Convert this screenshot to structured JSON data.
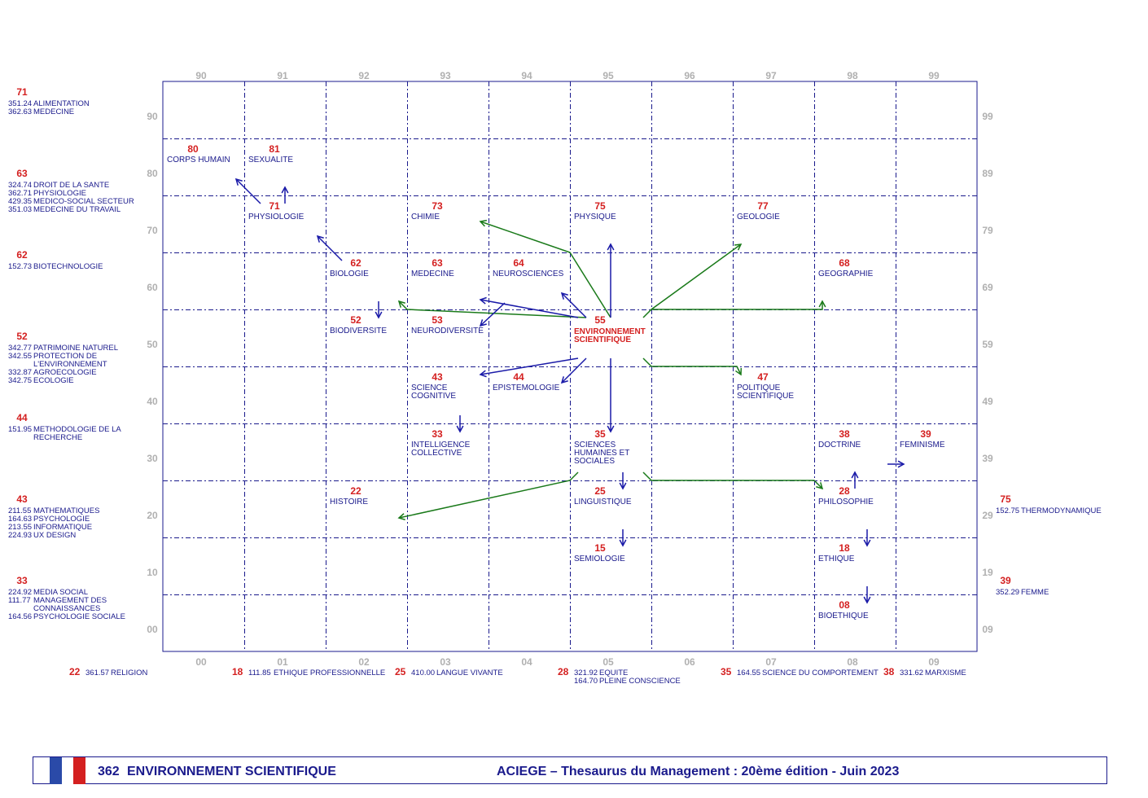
{
  "colors": {
    "grid": "#1a1a8c",
    "axis_label": "#b0b0b0",
    "code": "#d42020",
    "term": "#1a1a8c",
    "focus": "#d42020",
    "arrow_blue": "#1a1aa8",
    "arrow_green": "#1a7a1a"
  },
  "axes": {
    "top": [
      "90",
      "91",
      "92",
      "93",
      "94",
      "95",
      "96",
      "97",
      "98",
      "99"
    ],
    "bottom": [
      "00",
      "01",
      "02",
      "03",
      "04",
      "05",
      "06",
      "07",
      "08",
      "09"
    ],
    "left": [
      "90",
      "80",
      "70",
      "60",
      "50",
      "40",
      "30",
      "20",
      "10",
      "00"
    ],
    "right": [
      "99",
      "89",
      "79",
      "69",
      "59",
      "49",
      "39",
      "29",
      "19",
      "09"
    ]
  },
  "focus": {
    "code": "55",
    "line1": "ENVIRONNEMENT",
    "line2": "SCIENTIFIQUE"
  },
  "cells": [
    {
      "id": "80",
      "col": 0,
      "row": 1,
      "code": "80",
      "lines": [
        "CORPS HUMAIN"
      ]
    },
    {
      "id": "81",
      "col": 1,
      "row": 1,
      "code": "81",
      "lines": [
        "SEXUALITE"
      ]
    },
    {
      "id": "71",
      "col": 1,
      "row": 2,
      "code": "71",
      "lines": [
        "PHYSIOLOGIE"
      ]
    },
    {
      "id": "73",
      "col": 3,
      "row": 2,
      "code": "73",
      "lines": [
        "CHIMIE"
      ]
    },
    {
      "id": "75",
      "col": 5,
      "row": 2,
      "code": "75",
      "lines": [
        "PHYSIQUE"
      ]
    },
    {
      "id": "77",
      "col": 7,
      "row": 2,
      "code": "77",
      "lines": [
        "GEOLOGIE"
      ]
    },
    {
      "id": "62",
      "col": 2,
      "row": 3,
      "code": "62",
      "lines": [
        "BIOLOGIE"
      ]
    },
    {
      "id": "63",
      "col": 3,
      "row": 3,
      "code": "63",
      "lines": [
        "MEDECINE"
      ]
    },
    {
      "id": "64",
      "col": 4,
      "row": 3,
      "code": "64",
      "lines": [
        "NEUROSCIENCES"
      ]
    },
    {
      "id": "68",
      "col": 8,
      "row": 3,
      "code": "68",
      "lines": [
        "GEOGRAPHIE"
      ]
    },
    {
      "id": "52",
      "col": 2,
      "row": 4,
      "code": "52",
      "lines": [
        "BIODIVERSITE"
      ]
    },
    {
      "id": "53",
      "col": 3,
      "row": 4,
      "code": "53",
      "lines": [
        "NEURODIVERSITE"
      ]
    },
    {
      "id": "43",
      "col": 3,
      "row": 5,
      "code": "43",
      "lines": [
        "SCIENCE",
        "COGNITIVE"
      ]
    },
    {
      "id": "44",
      "col": 4,
      "row": 5,
      "code": "44",
      "lines": [
        "EPISTEMOLOGIE"
      ]
    },
    {
      "id": "47",
      "col": 7,
      "row": 5,
      "code": "47",
      "lines": [
        "POLITIQUE",
        "SCIENTIFIQUE"
      ]
    },
    {
      "id": "33",
      "col": 3,
      "row": 6,
      "code": "33",
      "lines": [
        "INTELLIGENCE",
        "COLLECTIVE"
      ]
    },
    {
      "id": "35",
      "col": 5,
      "row": 6,
      "code": "35",
      "lines": [
        "SCIENCES",
        "HUMAINES ET",
        "SOCIALES"
      ]
    },
    {
      "id": "38",
      "col": 8,
      "row": 6,
      "code": "38",
      "lines": [
        "DOCTRINE"
      ]
    },
    {
      "id": "39",
      "col": 9,
      "row": 6,
      "code": "39",
      "lines": [
        "FEMINISME"
      ]
    },
    {
      "id": "22",
      "col": 2,
      "row": 7,
      "code": "22",
      "lines": [
        "HISTOIRE"
      ]
    },
    {
      "id": "25",
      "col": 5,
      "row": 7,
      "code": "25",
      "lines": [
        "LINGUISTIQUE"
      ]
    },
    {
      "id": "28",
      "col": 8,
      "row": 7,
      "code": "28",
      "lines": [
        "PHILOSOPHIE"
      ]
    },
    {
      "id": "15",
      "col": 5,
      "row": 8,
      "code": "15",
      "lines": [
        "SEMIOLOGIE"
      ]
    },
    {
      "id": "18",
      "col": 8,
      "row": 8,
      "code": "18",
      "lines": [
        "ETHIQUE"
      ]
    },
    {
      "id": "08",
      "col": 8,
      "row": 9,
      "code": "08",
      "lines": [
        "BIOETHIQUE"
      ]
    }
  ],
  "left_refs": [
    {
      "code": "71",
      "items": [
        {
          "num": "351.24",
          "label": "ALIMENTATION"
        },
        {
          "num": "362.63",
          "label": "MEDECINE"
        }
      ]
    },
    {
      "code": "63",
      "items": [
        {
          "num": "324.74",
          "label": "DROIT DE LA SANTE"
        },
        {
          "num": "362.71",
          "label": "PHYSIOLOGIE"
        },
        {
          "num": "429.35",
          "label": "MEDICO-SOCIAL SECTEUR"
        },
        {
          "num": "351.03",
          "label": "MEDECINE DU TRAVAIL"
        }
      ]
    },
    {
      "code": "62",
      "items": [
        {
          "num": "152.73",
          "label": "BIOTECHNOLOGIE"
        }
      ]
    },
    {
      "code": "52",
      "items": [
        {
          "num": "342.77",
          "label": "PATRIMOINE NATUREL"
        },
        {
          "num": "342.55",
          "label": "PROTECTION DE"
        },
        {
          "num": "",
          "label": "L'ENVIRONNEMENT"
        },
        {
          "num": "332.87",
          "label": "AGROECOLOGIE"
        },
        {
          "num": "342.75",
          "label": "ECOLOGIE"
        }
      ]
    },
    {
      "code": "44",
      "items": [
        {
          "num": "151.95",
          "label": "METHODOLOGIE DE LA"
        },
        {
          "num": "",
          "label": "RECHERCHE"
        }
      ]
    },
    {
      "code": "43",
      "items": [
        {
          "num": "211.55",
          "label": "MATHEMATIQUES"
        },
        {
          "num": "164.63",
          "label": "PSYCHOLOGIE"
        },
        {
          "num": "213.55",
          "label": "INFORMATIQUE"
        },
        {
          "num": "224.93",
          "label": "UX DESIGN"
        }
      ]
    },
    {
      "code": "33",
      "items": [
        {
          "num": "224.92",
          "label": "MEDIA SOCIAL"
        },
        {
          "num": "111.77",
          "label": "MANAGEMENT DES"
        },
        {
          "num": "",
          "label": "CONNAISSANCES"
        },
        {
          "num": "164.56",
          "label": "PSYCHOLOGIE SOCIALE"
        }
      ]
    }
  ],
  "right_refs": [
    {
      "code": "75",
      "items": [
        {
          "num": "152.75",
          "label": "THERMODYNAMIQUE"
        }
      ]
    },
    {
      "code": "39",
      "items": [
        {
          "num": "352.29",
          "label": "FEMME"
        }
      ]
    }
  ],
  "bottom_refs": [
    {
      "code": "22",
      "items": [
        {
          "num": "361.57",
          "label": "RELIGION"
        }
      ]
    },
    {
      "code": "18",
      "items": [
        {
          "num": "111.85",
          "label": "ETHIQUE PROFESSIONNELLE"
        }
      ]
    },
    {
      "code": "25",
      "items": [
        {
          "num": "410.00",
          "label": "LANGUE VIVANTE"
        }
      ]
    },
    {
      "code": "28",
      "items": [
        {
          "num": "321.92",
          "label": "EQUITE"
        },
        {
          "num": "164.70",
          "label": "PLEINE CONSCIENCE"
        }
      ]
    },
    {
      "code": "35",
      "items": [
        {
          "num": "164.55",
          "label": "SCIENCE DU COMPORTEMENT"
        }
      ]
    },
    {
      "code": "38",
      "items": [
        {
          "num": "331.62",
          "label": "MARXISME"
        }
      ]
    }
  ],
  "footer": {
    "code": "362",
    "theme": "ENVIRONNEMENT SCIENTIFIQUE",
    "credit": "ACIEGE  –  Thesaurus du Management  :   20ème édition  - Juin 2023",
    "flag_colors": [
      "#2a4aa8",
      "#ffffff",
      "#d42020"
    ]
  }
}
